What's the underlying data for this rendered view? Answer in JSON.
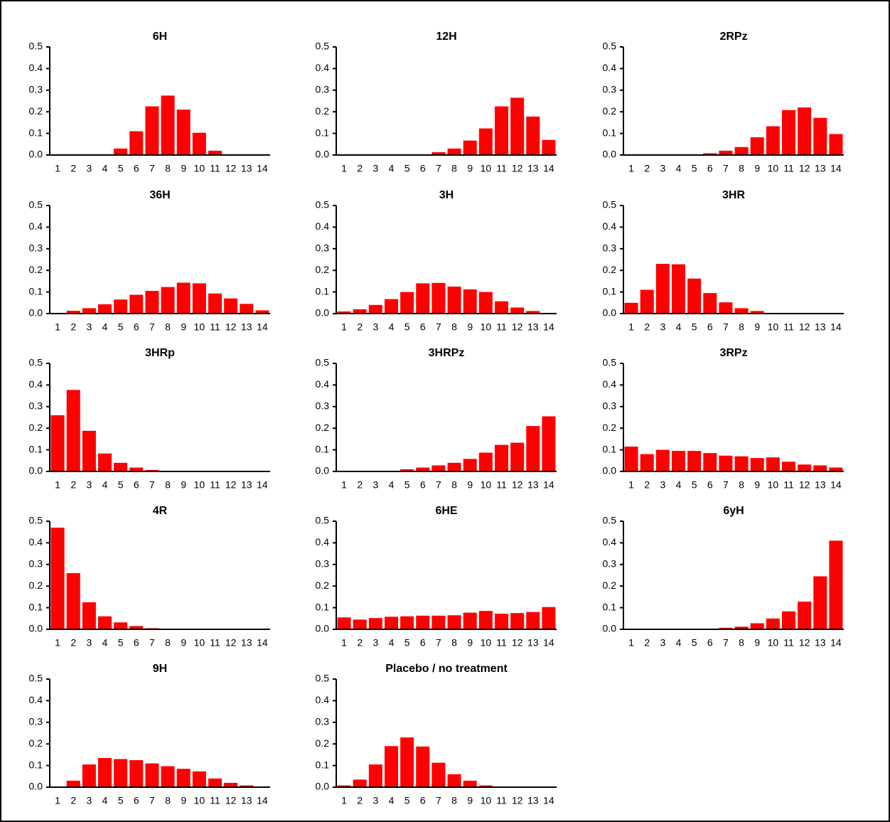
{
  "chart_data": [
    {
      "type": "bar",
      "title": "6H",
      "color": "#ff0000",
      "categories": [
        "1",
        "2",
        "3",
        "4",
        "5",
        "6",
        "7",
        "8",
        "9",
        "10",
        "11",
        "12",
        "13",
        "14"
      ],
      "values": [
        0,
        0,
        0,
        0.003,
        0.03,
        0.11,
        0.225,
        0.275,
        0.21,
        0.103,
        0.02,
        0,
        0,
        0
      ],
      "ylim": [
        0,
        0.5
      ],
      "yticks": [
        {
          "value": 0,
          "label": "0.0"
        },
        0.1,
        0.2,
        0.3,
        0.4,
        0.5
      ]
    },
    {
      "type": "bar",
      "title": "12H",
      "color": "#ff0000",
      "categories": [
        "1",
        "2",
        "3",
        "4",
        "5",
        "6",
        "7",
        "8",
        "9",
        "10",
        "11",
        "12",
        "13",
        "14"
      ],
      "values": [
        0,
        0,
        0,
        0,
        0,
        0.003,
        0.013,
        0.03,
        0.067,
        0.123,
        0.225,
        0.265,
        0.178,
        0.07
      ],
      "ylim": [
        0,
        0.5
      ],
      "yticks": [
        {
          "value": 0,
          "label": "0.0"
        },
        0.1,
        0.2,
        0.3,
        0.4,
        0.5
      ]
    },
    {
      "type": "bar",
      "title": "2RPz",
      "color": "#ff0000",
      "categories": [
        "1",
        "2",
        "3",
        "4",
        "5",
        "6",
        "7",
        "8",
        "9",
        "10",
        "11",
        "12",
        "13",
        "14"
      ],
      "values": [
        0,
        0,
        0,
        0,
        0,
        0.008,
        0.02,
        0.037,
        0.082,
        0.133,
        0.208,
        0.22,
        0.172,
        0.097
      ],
      "ylim": [
        0,
        0.5
      ],
      "yticks": [
        {
          "value": 0,
          "label": "0.0"
        },
        0.1,
        0.2,
        0.3,
        0.4,
        0.5
      ]
    },
    {
      "type": "bar",
      "title": "36H",
      "color": "#ff0000",
      "categories": [
        "1",
        "2",
        "3",
        "4",
        "5",
        "6",
        "7",
        "8",
        "9",
        "10",
        "11",
        "12",
        "13",
        "14"
      ],
      "values": [
        0.003,
        0.013,
        0.025,
        0.043,
        0.065,
        0.087,
        0.105,
        0.123,
        0.143,
        0.14,
        0.093,
        0.07,
        0.045,
        0.015
      ],
      "ylim": [
        0,
        0.5
      ],
      "yticks": [
        {
          "value": 0,
          "label": "0.0"
        },
        0.1,
        0.2,
        0.3,
        0.4,
        0.5
      ]
    },
    {
      "type": "bar",
      "title": "3H",
      "color": "#ff0000",
      "categories": [
        "1",
        "2",
        "3",
        "4",
        "5",
        "6",
        "7",
        "8",
        "9",
        "10",
        "11",
        "12",
        "13",
        "14"
      ],
      "values": [
        0.01,
        0.02,
        0.04,
        0.067,
        0.1,
        0.14,
        0.142,
        0.125,
        0.112,
        0.1,
        0.057,
        0.028,
        0.012,
        0.003
      ],
      "ylim": [
        0,
        0.5
      ],
      "yticks": [
        {
          "value": 0,
          "label": "0.0"
        },
        0.1,
        0.2,
        0.3,
        0.4,
        0.5
      ]
    },
    {
      "type": "bar",
      "title": "3HR",
      "color": "#ff0000",
      "categories": [
        "1",
        "2",
        "3",
        "4",
        "5",
        "6",
        "7",
        "8",
        "9",
        "10",
        "11",
        "12",
        "13",
        "14"
      ],
      "values": [
        0.05,
        0.11,
        0.23,
        0.228,
        0.162,
        0.095,
        0.052,
        0.025,
        0.012,
        0.003,
        0,
        0,
        0,
        0
      ],
      "ylim": [
        0,
        0.5
      ],
      "yticks": [
        {
          "value": 0,
          "label": "0.0"
        },
        0.1,
        0.2,
        0.3,
        0.4,
        0.5
      ]
    },
    {
      "type": "bar",
      "title": "3HRp",
      "color": "#ff0000",
      "categories": [
        "1",
        "2",
        "3",
        "4",
        "5",
        "6",
        "7",
        "8",
        "9",
        "10",
        "11",
        "12",
        "13",
        "14"
      ],
      "values": [
        0.26,
        0.377,
        0.188,
        0.083,
        0.04,
        0.018,
        0.007,
        0.002,
        0,
        0,
        0,
        0,
        0,
        0
      ],
      "ylim": [
        0,
        0.5
      ],
      "yticks": [
        {
          "value": 0,
          "label": "0.0"
        },
        0.1,
        0.2,
        0.3,
        0.4,
        0.5
      ]
    },
    {
      "type": "bar",
      "title": "3HRPz",
      "color": "#ff0000",
      "categories": [
        "1",
        "2",
        "3",
        "4",
        "5",
        "6",
        "7",
        "8",
        "9",
        "10",
        "11",
        "12",
        "13",
        "14"
      ],
      "values": [
        0,
        0,
        0,
        0.003,
        0.01,
        0.018,
        0.028,
        0.04,
        0.058,
        0.087,
        0.123,
        0.133,
        0.21,
        0.255
      ],
      "ylim": [
        0,
        0.5
      ],
      "yticks": [
        {
          "value": 0,
          "label": "0.0"
        },
        0.1,
        0.2,
        0.3,
        0.4,
        0.5
      ]
    },
    {
      "type": "bar",
      "title": "3RPz",
      "color": "#ff0000",
      "categories": [
        "1",
        "2",
        "3",
        "4",
        "5",
        "6",
        "7",
        "8",
        "9",
        "10",
        "11",
        "12",
        "13",
        "14"
      ],
      "values": [
        0.115,
        0.08,
        0.1,
        0.095,
        0.095,
        0.085,
        0.073,
        0.07,
        0.062,
        0.065,
        0.045,
        0.032,
        0.028,
        0.018
      ],
      "ylim": [
        0,
        0.5
      ],
      "yticks": [
        {
          "value": 0,
          "label": "0.0"
        },
        0.1,
        0.2,
        0.3,
        0.4,
        0.5
      ]
    },
    {
      "type": "bar",
      "title": "4R",
      "color": "#ff0000",
      "categories": [
        "1",
        "2",
        "3",
        "4",
        "5",
        "6",
        "7",
        "8",
        "9",
        "10",
        "11",
        "12",
        "13",
        "14"
      ],
      "values": [
        0.47,
        0.26,
        0.125,
        0.06,
        0.032,
        0.015,
        0.005,
        0.002,
        0,
        0,
        0,
        0,
        0,
        0
      ],
      "ylim": [
        0,
        0.5
      ],
      "yticks": [
        {
          "value": 0,
          "label": "0.0"
        },
        0.1,
        0.2,
        0.3,
        0.4,
        0.5
      ]
    },
    {
      "type": "bar",
      "title": "6HE",
      "color": "#ff0000",
      "categories": [
        "1",
        "2",
        "3",
        "4",
        "5",
        "6",
        "7",
        "8",
        "9",
        "10",
        "11",
        "12",
        "13",
        "14"
      ],
      "values": [
        0.055,
        0.045,
        0.052,
        0.058,
        0.06,
        0.063,
        0.063,
        0.065,
        0.077,
        0.085,
        0.072,
        0.075,
        0.08,
        0.103
      ],
      "ylim": [
        0,
        0.5
      ],
      "yticks": [
        {
          "value": 0,
          "label": "0.0"
        },
        0.1,
        0.2,
        0.3,
        0.4,
        0.5
      ]
    },
    {
      "type": "bar",
      "title": "6yH",
      "color": "#ff0000",
      "categories": [
        "1",
        "2",
        "3",
        "4",
        "5",
        "6",
        "7",
        "8",
        "9",
        "10",
        "11",
        "12",
        "13",
        "14"
      ],
      "values": [
        0,
        0,
        0,
        0,
        0,
        0.003,
        0.007,
        0.012,
        0.028,
        0.05,
        0.083,
        0.128,
        0.245,
        0.41
      ],
      "ylim": [
        0,
        0.5
      ],
      "yticks": [
        {
          "value": 0,
          "label": "0.0"
        },
        0.1,
        0.2,
        0.3,
        0.4,
        0.5
      ]
    },
    {
      "type": "bar",
      "title": "9H",
      "color": "#ff0000",
      "categories": [
        "1",
        "2",
        "3",
        "4",
        "5",
        "6",
        "7",
        "8",
        "9",
        "10",
        "11",
        "12",
        "13",
        "14"
      ],
      "values": [
        0,
        0.03,
        0.105,
        0.135,
        0.13,
        0.125,
        0.11,
        0.097,
        0.085,
        0.073,
        0.04,
        0.02,
        0.008,
        0
      ],
      "ylim": [
        0,
        0.5
      ],
      "yticks": [
        {
          "value": 0,
          "label": "0.0"
        },
        0.1,
        0.2,
        0.3,
        0.4,
        0.5
      ]
    },
    {
      "type": "bar",
      "title": "Placebo / no treatment",
      "color": "#ff0000",
      "categories": [
        "1",
        "2",
        "3",
        "4",
        "5",
        "6",
        "7",
        "8",
        "9",
        "10",
        "11",
        "12",
        "13",
        "14"
      ],
      "values": [
        0.008,
        0.035,
        0.105,
        0.19,
        0.23,
        0.188,
        0.113,
        0.06,
        0.03,
        0.008,
        0.002,
        0,
        0,
        0
      ],
      "ylim": [
        0,
        0.5
      ],
      "yticks": [
        {
          "value": 0,
          "label": "0.0"
        },
        0.1,
        0.2,
        0.3,
        0.4,
        0.5
      ]
    }
  ]
}
